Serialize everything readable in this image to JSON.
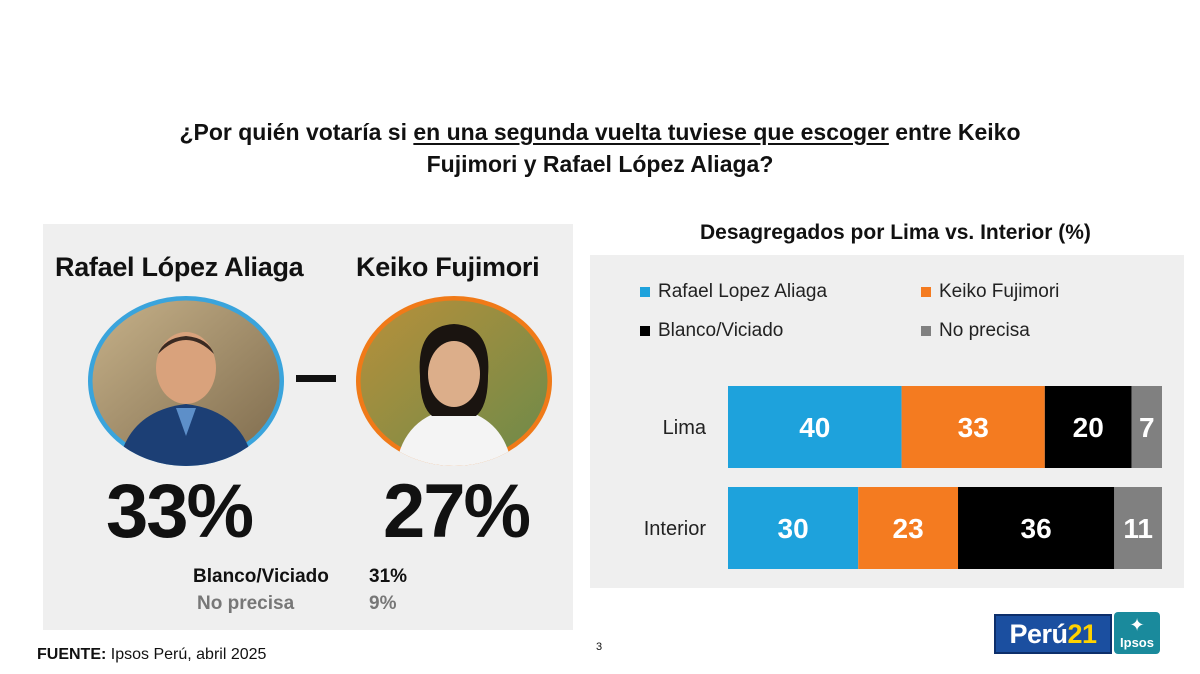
{
  "title": {
    "prefix": "¿Por quién votaría si ",
    "underlined": "en una segunda vuelta tuviese que escoger",
    "suffix": " entre Keiko Fujimori y Rafael López Aliaga?"
  },
  "left": {
    "candidate1": {
      "name": "Rafael López Aliaga",
      "percent": "33%",
      "ring_color": "#3aa4dc"
    },
    "candidate2": {
      "name": "Keiko Fujimori",
      "percent": "27%",
      "ring_color": "#f07a18"
    },
    "blanco": {
      "label": "Blanco/Viciado",
      "value": "31%"
    },
    "noprecisa": {
      "label": "No precisa",
      "value": "9%"
    }
  },
  "chart_data": {
    "type": "bar",
    "orientation": "horizontal",
    "stacked": true,
    "title": "Desagregados por Lima vs. Interior (%)",
    "categories": [
      "Lima",
      "Interior"
    ],
    "series": [
      {
        "name": "Rafael Lopez Aliaga",
        "color": "#1ea2dc",
        "values": [
          40,
          30
        ]
      },
      {
        "name": "Keiko Fujimori",
        "color": "#f47b20",
        "values": [
          33,
          23
        ]
      },
      {
        "name": "Blanco/Viciado",
        "color": "#000000",
        "values": [
          20,
          36
        ]
      },
      {
        "name": "No precisa",
        "color": "#808080",
        "values": [
          7,
          11
        ]
      }
    ],
    "legend": "top"
  },
  "source": {
    "label": "FUENTE:",
    "text": " Ipsos Perú, abril 2025"
  },
  "page_number": "3",
  "logos": {
    "peru_a": "Perú",
    "peru_b": "21",
    "ipsos": "Ipsos"
  }
}
